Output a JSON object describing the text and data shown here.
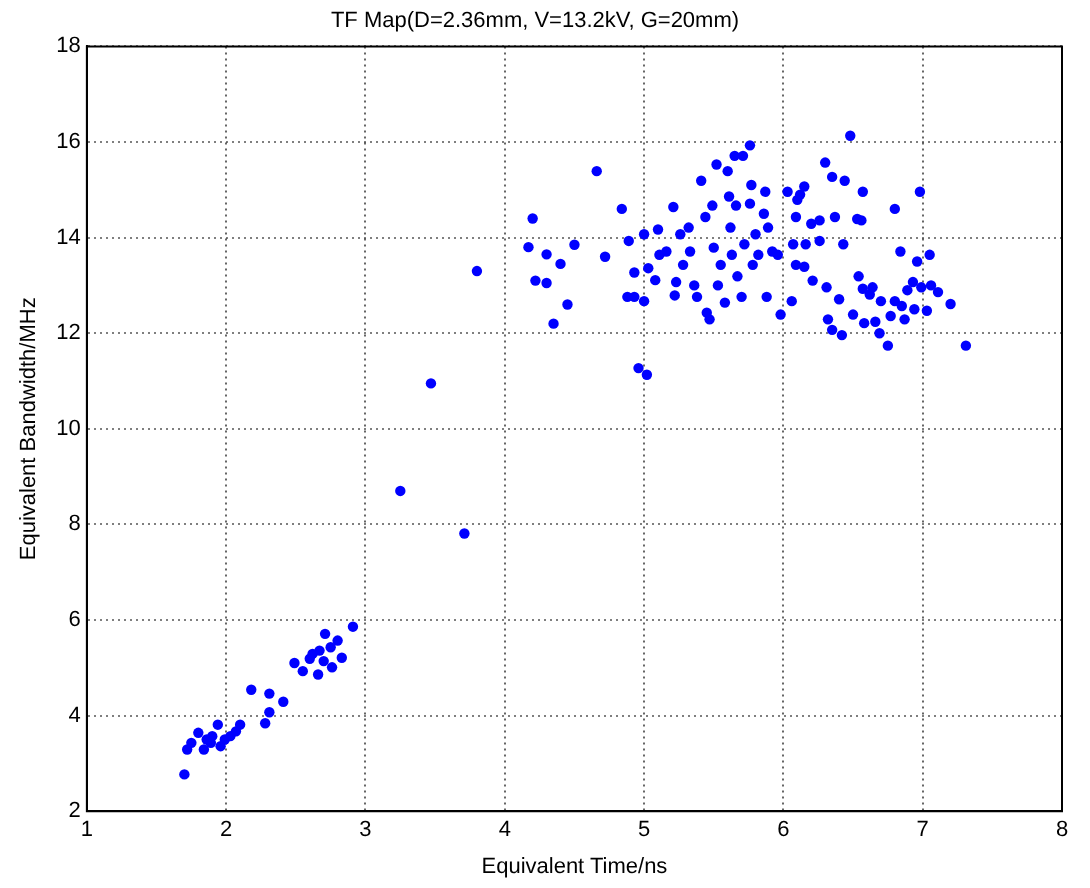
{
  "chart_data": {
    "type": "scatter",
    "title": "TF Map(D=2.36mm, V=13.2kV, G=20mm)",
    "xlabel": "Equivalent Time/ns",
    "ylabel": "Equivalent Bandwidth/MHz",
    "xlim": [
      1,
      8
    ],
    "xticks": [
      1,
      2,
      3,
      4,
      5,
      6,
      7,
      8
    ],
    "ylim": [
      2,
      18
    ],
    "yticks": [
      2,
      4,
      6,
      8,
      10,
      12,
      14,
      16,
      18
    ],
    "grid": true,
    "marker": "circle",
    "series": [
      {
        "color": "#0000ff",
        "x": [
          1.7,
          1.72,
          1.75,
          1.8,
          1.84,
          1.86,
          1.89,
          1.9,
          1.94,
          1.96,
          1.99,
          2.03,
          2.07,
          2.1,
          2.18,
          2.28,
          2.31,
          2.31,
          2.41,
          2.49,
          2.55,
          2.6,
          2.62,
          2.66,
          2.67,
          2.7,
          2.71,
          2.75,
          2.76,
          2.8,
          2.83,
          2.91,
          3.25,
          3.47,
          3.71,
          3.8,
          4.17,
          4.2,
          4.22,
          4.3,
          4.3,
          4.35,
          4.4,
          4.45,
          4.5,
          4.66,
          4.72,
          4.84,
          4.88,
          4.89,
          4.93,
          4.93,
          4.96,
          5.0,
          5.0,
          5.02,
          5.03,
          5.08,
          5.1,
          5.11,
          5.16,
          5.21,
          5.22,
          5.23,
          5.26,
          5.28,
          5.32,
          5.33,
          5.36,
          5.38,
          5.41,
          5.44,
          5.45,
          5.47,
          5.49,
          5.5,
          5.52,
          5.53,
          5.55,
          5.58,
          5.6,
          5.61,
          5.62,
          5.63,
          5.65,
          5.66,
          5.67,
          5.7,
          5.71,
          5.72,
          5.76,
          5.76,
          5.77,
          5.78,
          5.8,
          5.82,
          5.86,
          5.87,
          5.88,
          5.89,
          5.92,
          5.96,
          5.98,
          6.03,
          6.06,
          6.07,
          6.09,
          6.09,
          6.1,
          6.12,
          6.15,
          6.15,
          6.16,
          6.2,
          6.21,
          6.26,
          6.26,
          6.3,
          6.31,
          6.32,
          6.35,
          6.35,
          6.37,
          6.4,
          6.42,
          6.43,
          6.44,
          6.48,
          6.5,
          6.53,
          6.54,
          6.56,
          6.57,
          6.57,
          6.58,
          6.62,
          6.64,
          6.66,
          6.69,
          6.7,
          6.75,
          6.77,
          6.8,
          6.8,
          6.84,
          6.85,
          6.87,
          6.89,
          6.93,
          6.94,
          6.96,
          6.98,
          6.99,
          7.03,
          7.05,
          7.06,
          7.11,
          7.2,
          7.31
        ],
        "values": [
          2.77,
          3.29,
          3.43,
          3.64,
          3.29,
          3.5,
          3.43,
          3.57,
          3.81,
          3.36,
          3.5,
          3.57,
          3.67,
          3.81,
          4.54,
          3.84,
          4.07,
          4.46,
          4.29,
          5.1,
          4.93,
          5.19,
          5.29,
          4.86,
          5.36,
          5.14,
          5.71,
          5.43,
          5.01,
          5.57,
          5.21,
          5.86,
          8.7,
          10.95,
          7.81,
          13.3,
          13.8,
          14.4,
          13.1,
          13.65,
          13.05,
          12.2,
          13.45,
          12.6,
          13.85,
          15.39,
          13.6,
          14.6,
          12.76,
          13.93,
          13.27,
          12.76,
          11.27,
          12.67,
          14.07,
          11.13,
          13.36,
          13.11,
          14.17,
          13.64,
          13.71,
          14.64,
          12.79,
          13.07,
          14.07,
          13.43,
          14.21,
          13.71,
          13.0,
          12.76,
          15.19,
          14.43,
          12.43,
          12.29,
          14.67,
          13.79,
          15.53,
          13.0,
          13.43,
          12.64,
          15.39,
          14.86,
          14.21,
          13.64,
          15.71,
          14.67,
          13.19,
          12.76,
          15.71,
          13.86,
          15.93,
          14.71,
          15.1,
          13.43,
          14.07,
          13.64,
          14.5,
          14.96,
          12.76,
          14.21,
          13.71,
          13.64,
          12.39,
          14.96,
          12.67,
          13.86,
          14.43,
          13.43,
          14.79,
          14.9,
          15.07,
          13.39,
          13.86,
          14.29,
          13.1,
          14.36,
          13.93,
          15.57,
          12.96,
          12.29,
          15.27,
          12.07,
          14.43,
          12.71,
          11.96,
          13.86,
          15.19,
          16.13,
          12.39,
          14.39,
          13.19,
          14.36,
          14.96,
          12.93,
          12.21,
          12.81,
          12.96,
          12.24,
          12.0,
          12.67,
          11.74,
          12.36,
          14.6,
          12.67,
          13.71,
          12.57,
          12.29,
          12.9,
          13.07,
          12.5,
          13.5,
          14.96,
          12.96,
          12.47,
          13.64,
          13.0,
          12.86,
          12.61,
          11.74
        ]
      }
    ]
  }
}
